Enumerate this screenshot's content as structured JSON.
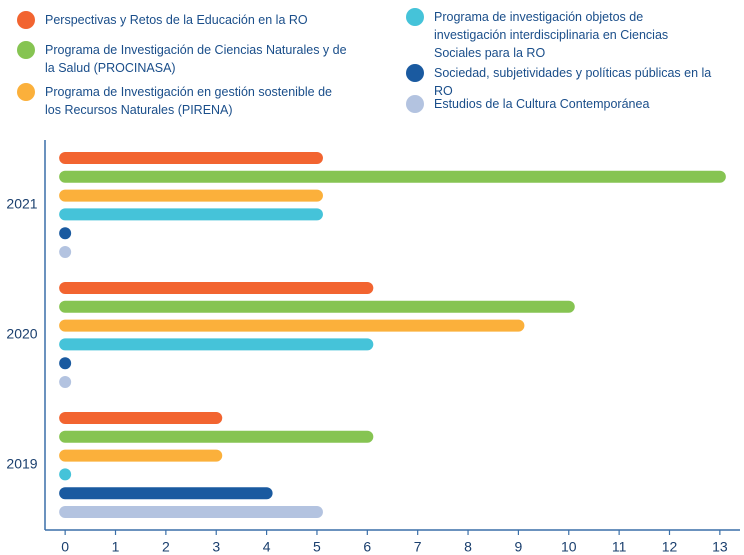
{
  "chart_data": {
    "type": "bar",
    "orientation": "horizontal",
    "categories": [
      "2021",
      "2020",
      "2019"
    ],
    "series": [
      {
        "name": "Perspectivas y Retos de la Educación en la RO",
        "color": "#f26430",
        "values": [
          5,
          6,
          3
        ]
      },
      {
        "name": "Programa de Investigación de Ciencias Naturales y de la Salud (PROCINASA)",
        "color": "#86c452",
        "values": [
          13,
          10,
          6
        ]
      },
      {
        "name": "Programa de Investigación en gestión sostenible de los Recursos Naturales (PIRENA)",
        "color": "#fbb03b",
        "values": [
          5,
          9,
          3
        ]
      },
      {
        "name": "Programa de investigación objetos de investigación interdisciplinaria en Ciencias Sociales para la RO",
        "color": "#45c3d9",
        "values": [
          5,
          6,
          0
        ]
      },
      {
        "name": "Sociedad, subjetividades y políticas públicas en la RO",
        "color": "#1a5aa0",
        "values": [
          0,
          0,
          4
        ]
      },
      {
        "name": "Estudios de la Cultura Contemporánea",
        "color": "#b3c3e0",
        "values": [
          0,
          0,
          5
        ]
      }
    ],
    "xlim": [
      -0.4,
      13.4
    ],
    "xticks": [
      0,
      1,
      2,
      3,
      4,
      5,
      6,
      7,
      8,
      9,
      10,
      11,
      12,
      13
    ]
  }
}
